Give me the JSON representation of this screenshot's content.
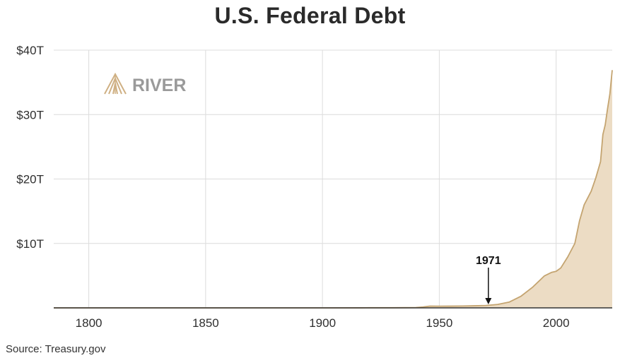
{
  "colors": {
    "area_fill": "#ecdcc4",
    "area_line": "#c4a470",
    "grid": "#dcdcdc",
    "axis": "#333333",
    "logo_gray": "#9a9a9a",
    "logo_gold": "#cfb083"
  },
  "source": "Source: Treasury.gov",
  "logo": {
    "text": "RIVER",
    "icon": "river-logo-icon"
  },
  "chart_data": {
    "type": "area",
    "title": "U.S. Federal Debt",
    "xlabel": "",
    "ylabel": "",
    "xlim": [
      1785,
      2024
    ],
    "ylim": [
      0,
      40
    ],
    "unit": "trillion USD",
    "grid": true,
    "legend": "none",
    "x_ticks": [
      {
        "value": 1800,
        "label": "1800"
      },
      {
        "value": 1850,
        "label": "1850"
      },
      {
        "value": 1900,
        "label": "1900"
      },
      {
        "value": 1950,
        "label": "1950"
      },
      {
        "value": 2000,
        "label": "2000"
      }
    ],
    "y_ticks": [
      {
        "value": 10,
        "label": "$10T"
      },
      {
        "value": 20,
        "label": "$20T"
      },
      {
        "value": 30,
        "label": "$30T"
      },
      {
        "value": 40,
        "label": "$40T"
      }
    ],
    "series": [
      {
        "x": [
          1785,
          1900,
          1917,
          1920,
          1930,
          1940,
          1943,
          1946,
          1950,
          1955,
          1960,
          1965,
          1970,
          1975,
          1980,
          1985,
          1990,
          1995,
          1998,
          2000,
          2002,
          2005,
          2008,
          2010,
          2012,
          2015,
          2017,
          2019,
          2020,
          2021,
          2022,
          2023,
          2024
        ],
        "y": [
          0,
          0,
          0.005,
          0.03,
          0.02,
          0.05,
          0.14,
          0.27,
          0.26,
          0.27,
          0.29,
          0.32,
          0.37,
          0.53,
          0.91,
          1.82,
          3.23,
          4.97,
          5.5,
          5.67,
          6.2,
          7.93,
          10.0,
          13.5,
          16.0,
          18.1,
          20.2,
          22.7,
          26.9,
          28.4,
          30.9,
          33.2,
          36.9
        ]
      }
    ],
    "annotations": [
      {
        "label": "1971",
        "x": 1971
      }
    ]
  }
}
